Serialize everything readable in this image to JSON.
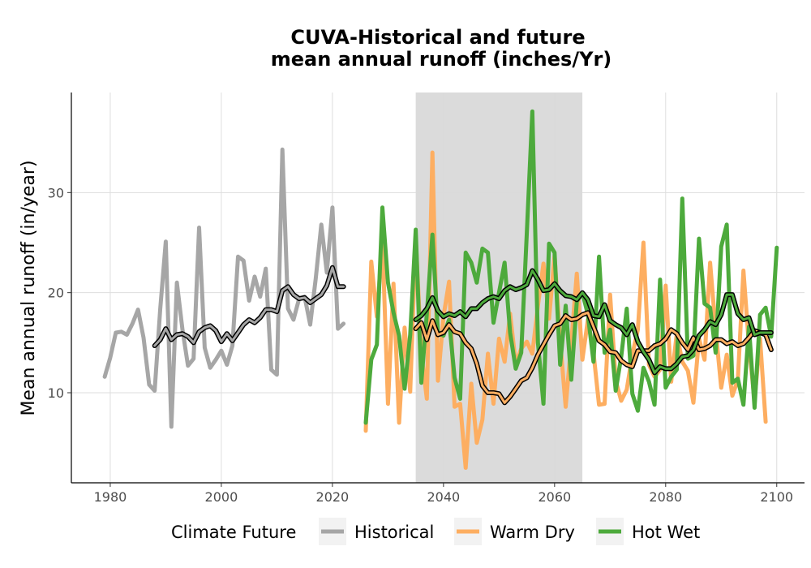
{
  "chart_data": {
    "type": "line",
    "title_line1": "CUVA-Historical and future",
    "title_line2": "mean annual runoff (inches/Yr)",
    "xlabel": "",
    "ylabel": "Mean annual runoff (in/year)",
    "xlim": [
      1973,
      2105
    ],
    "ylim": [
      1,
      40
    ],
    "x_ticks": [
      1980,
      2000,
      2020,
      2040,
      2060,
      2080,
      2100
    ],
    "y_ticks": [
      10,
      20,
      30
    ],
    "grid": true,
    "shaded_period": [
      2035,
      2065
    ],
    "legend": {
      "title": "Climate Future",
      "position": "bottom"
    },
    "colors": {
      "Historical": "#a6a6a6",
      "Warm Dry": "#fdae61",
      "Hot Wet": "#4daa3c",
      "shade": "#d9d9d9",
      "smooth_outline": "#000000"
    },
    "series": [
      {
        "name": "Historical",
        "x_start": 1979,
        "values": [
          11.6,
          13.5,
          16.0,
          16.1,
          15.8,
          16.9,
          18.3,
          15.5,
          10.8,
          10.2,
          18.4,
          25.1,
          6.6,
          21.0,
          16.3,
          12.7,
          13.4,
          26.5,
          14.5,
          12.5,
          13.3,
          14.2,
          12.8,
          14.7,
          23.6,
          23.2,
          19.2,
          21.6,
          19.6,
          22.4,
          12.3,
          11.8,
          34.3,
          18.4,
          17.3,
          19.4,
          19.6,
          16.8,
          21.4,
          26.8,
          22.0,
          28.5,
          16.4,
          16.9
        ]
      },
      {
        "name": "Warm Dry",
        "x_start": 2026,
        "values": [
          6.2,
          23.1,
          17.6,
          25.3,
          8.9,
          20.9,
          7.0,
          16.5,
          10.1,
          25.5,
          14.0,
          9.4,
          34.0,
          11.2,
          17.6,
          21.1,
          8.6,
          8.9,
          2.5,
          10.9,
          5.0,
          7.3,
          13.9,
          8.9,
          15.4,
          13.1,
          17.9,
          12.9,
          14.4,
          15.1,
          13.9,
          18.7,
          22.9,
          17.4,
          23.7,
          15.2,
          8.6,
          15.0,
          21.9,
          13.3,
          17.3,
          14.0,
          8.8,
          8.9,
          19.8,
          11.2,
          9.2,
          10.3,
          13.8,
          16.3,
          25.0,
          12.8,
          11.6,
          12.3,
          20.7,
          11.1,
          15.9,
          13.1,
          12.2,
          9.0,
          15.4,
          13.3,
          23.0,
          16.3,
          10.5,
          13.8,
          9.7,
          11.3,
          22.2,
          14.7,
          9.2,
          15.4,
          7.1
        ]
      },
      {
        "name": "Hot Wet",
        "x_start": 2026,
        "values": [
          7.0,
          13.3,
          14.8,
          28.5,
          21.0,
          18.0,
          15.7,
          10.4,
          15.8,
          26.3,
          11.0,
          17.9,
          25.8,
          16.0,
          15.7,
          17.3,
          11.5,
          9.4,
          24.0,
          23.0,
          21.0,
          24.4,
          24.0,
          17.0,
          20.0,
          23.0,
          16.0,
          12.4,
          14.0,
          26.0,
          38.1,
          15.0,
          8.9,
          24.9,
          24.0,
          12.8,
          18.7,
          11.3,
          19.1,
          20.0,
          17.8,
          13.1,
          23.6,
          14.0,
          16.3,
          10.2,
          13.6,
          18.4,
          9.9,
          8.2,
          12.5,
          11.1,
          8.8,
          21.3,
          10.5,
          11.6,
          12.3,
          29.4,
          13.4,
          13.7,
          25.4,
          18.9,
          18.5,
          14.0,
          24.6,
          26.8,
          11.0,
          11.4,
          8.8,
          16.6,
          8.5,
          17.8,
          18.5,
          15.6,
          24.5
        ]
      },
      {
        "name": "Historical (smoothed)",
        "x_start": 1988,
        "values": [
          14.7,
          15.3,
          16.4,
          15.3,
          15.8,
          15.9,
          15.6,
          15.0,
          16.1,
          16.5,
          16.7,
          16.2,
          15.1,
          15.9,
          15.2,
          16.0,
          16.8,
          17.3,
          17.0,
          17.5,
          18.3,
          18.3,
          18.1,
          20.2,
          20.6,
          19.8,
          19.4,
          19.5,
          19.0,
          19.4,
          19.8,
          20.7,
          22.5,
          20.6,
          20.6
        ]
      },
      {
        "name": "Warm Dry (smoothed)",
        "x_start": 2035,
        "values": [
          16.4,
          17.0,
          15.3,
          17.2,
          15.8,
          16.0,
          16.8,
          16.1,
          15.9,
          15.0,
          14.4,
          12.9,
          10.7,
          10.0,
          10.0,
          9.9,
          9.0,
          9.6,
          10.4,
          11.2,
          11.5,
          12.5,
          13.8,
          14.8,
          15.8,
          16.7,
          16.9,
          17.7,
          17.3,
          17.4,
          17.8,
          18.0,
          16.6,
          15.2,
          14.8,
          14.1,
          14.0,
          13.2,
          12.8,
          12.6,
          14.2,
          14.2,
          14.2,
          14.7,
          14.9,
          15.4,
          16.3,
          15.9,
          15.0,
          14.3,
          15.5,
          14.3,
          14.4,
          14.7,
          15.3,
          15.3,
          14.9,
          15.1,
          14.7,
          14.9,
          15.5,
          16.2,
          16.0,
          15.8,
          14.3
        ]
      },
      {
        "name": "Hot Wet (smoothed)",
        "x_start": 2035,
        "values": [
          17.3,
          17.7,
          18.4,
          19.5,
          18.2,
          17.6,
          17.9,
          17.7,
          18.1,
          17.6,
          18.4,
          18.4,
          19.0,
          19.4,
          19.6,
          19.4,
          20.2,
          20.6,
          20.3,
          20.5,
          20.8,
          22.2,
          21.3,
          20.2,
          20.3,
          20.9,
          20.2,
          19.7,
          19.6,
          19.3,
          20.0,
          19.3,
          17.7,
          17.6,
          18.8,
          17.2,
          16.8,
          16.5,
          15.8,
          16.8,
          15.1,
          14.1,
          13.3,
          12.0,
          12.6,
          12.4,
          12.4,
          12.9,
          13.6,
          13.7,
          14.3,
          15.7,
          16.3,
          17.1,
          16.8,
          17.8,
          19.8,
          19.8,
          17.9,
          17.3,
          17.5,
          15.8,
          16.0,
          16.0,
          16.0
        ]
      }
    ]
  }
}
